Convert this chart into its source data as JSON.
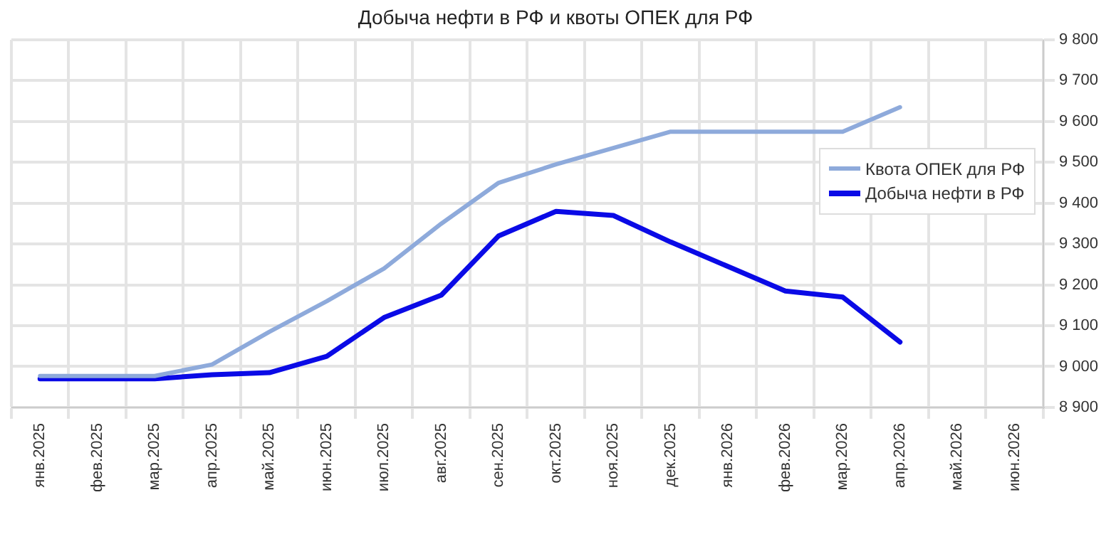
{
  "chart_data": {
    "type": "line",
    "title": "Добыча нефти в РФ и квоты ОПЕК для РФ",
    "categories": [
      "янв.2025",
      "фев.2025",
      "мар.2025",
      "апр.2025",
      "май.2025",
      "июн.2025",
      "июл.2025",
      "авг.2025",
      "сен.2025",
      "окт.2025",
      "ноя.2025",
      "дек.2025",
      "янв.2026",
      "фев.2026",
      "мар.2026",
      "апр.2026",
      "май.2026",
      "июн.2026"
    ],
    "series": [
      {
        "name": "Квота ОПЕК для РФ",
        "color": "#8eaadb",
        "values": [
          8977,
          8977,
          8977,
          9005,
          9085,
          9160,
          9240,
          9350,
          9450,
          9495,
          9535,
          9575,
          9575,
          9575,
          9575,
          9635,
          null,
          null
        ]
      },
      {
        "name": "Добыча нефти в РФ",
        "color": "#0a0ae6",
        "values": [
          8970,
          8970,
          8970,
          8980,
          8985,
          9025,
          9120,
          9175,
          9320,
          9380,
          9370,
          9305,
          9245,
          9185,
          9170,
          9060,
          null,
          null
        ]
      }
    ],
    "ylim": [
      8900,
      9800
    ],
    "yticks": [
      {
        "value": 8900,
        "label": "8 900"
      },
      {
        "value": 9000,
        "label": "9 000"
      },
      {
        "value": 9100,
        "label": "9 100"
      },
      {
        "value": 9200,
        "label": "9 200"
      },
      {
        "value": 9300,
        "label": "9 300"
      },
      {
        "value": 9400,
        "label": "9 400"
      },
      {
        "value": 9500,
        "label": "9 500"
      },
      {
        "value": 9600,
        "label": "9 600"
      },
      {
        "value": 9700,
        "label": "9 700"
      },
      {
        "value": 9800,
        "label": "9 800"
      }
    ],
    "grid": true,
    "legend": "right",
    "marker": "none",
    "line_style": "solid"
  }
}
